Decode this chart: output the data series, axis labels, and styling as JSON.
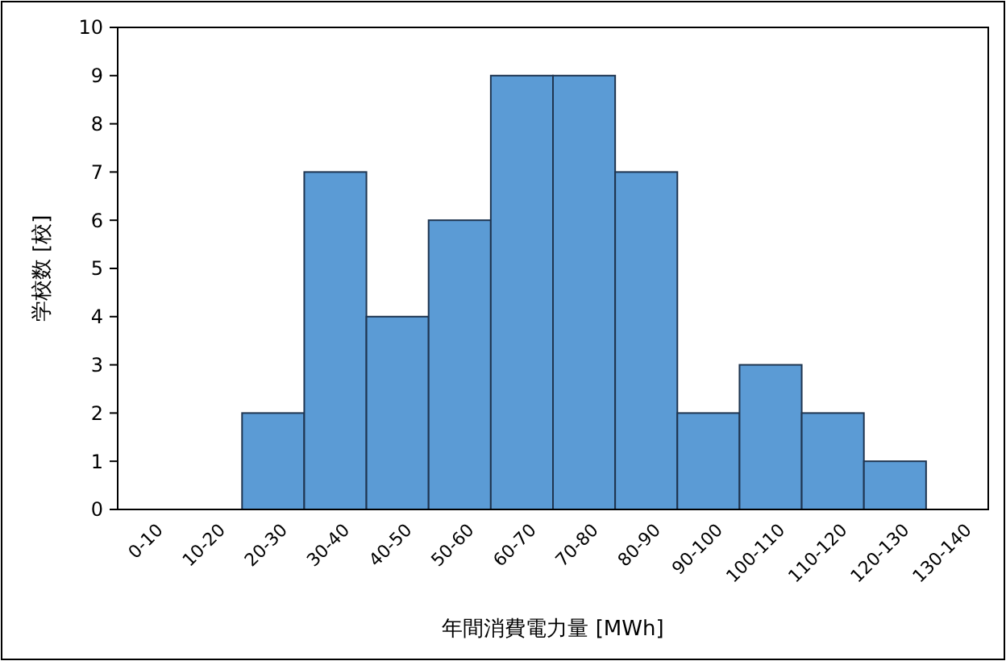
{
  "chart_data": {
    "type": "bar",
    "xlabel": "年間消費電力量 [MWh]",
    "ylabel": "学校数 [校]",
    "categories": [
      "0-10",
      "10-20",
      "20-30",
      "30-40",
      "40-50",
      "50-60",
      "60-70",
      "70-80",
      "80-90",
      "90-100",
      "100-110",
      "110-120",
      "120-130",
      "130-140"
    ],
    "values": [
      0,
      0,
      2,
      7,
      4,
      6,
      9,
      9,
      7,
      2,
      3,
      2,
      1,
      0
    ],
    "color": "#5b9bd5",
    "ylim": [
      0,
      10
    ],
    "yticks": [
      0,
      1,
      2,
      3,
      4,
      5,
      6,
      7,
      8,
      9,
      10
    ],
    "grid": false
  }
}
